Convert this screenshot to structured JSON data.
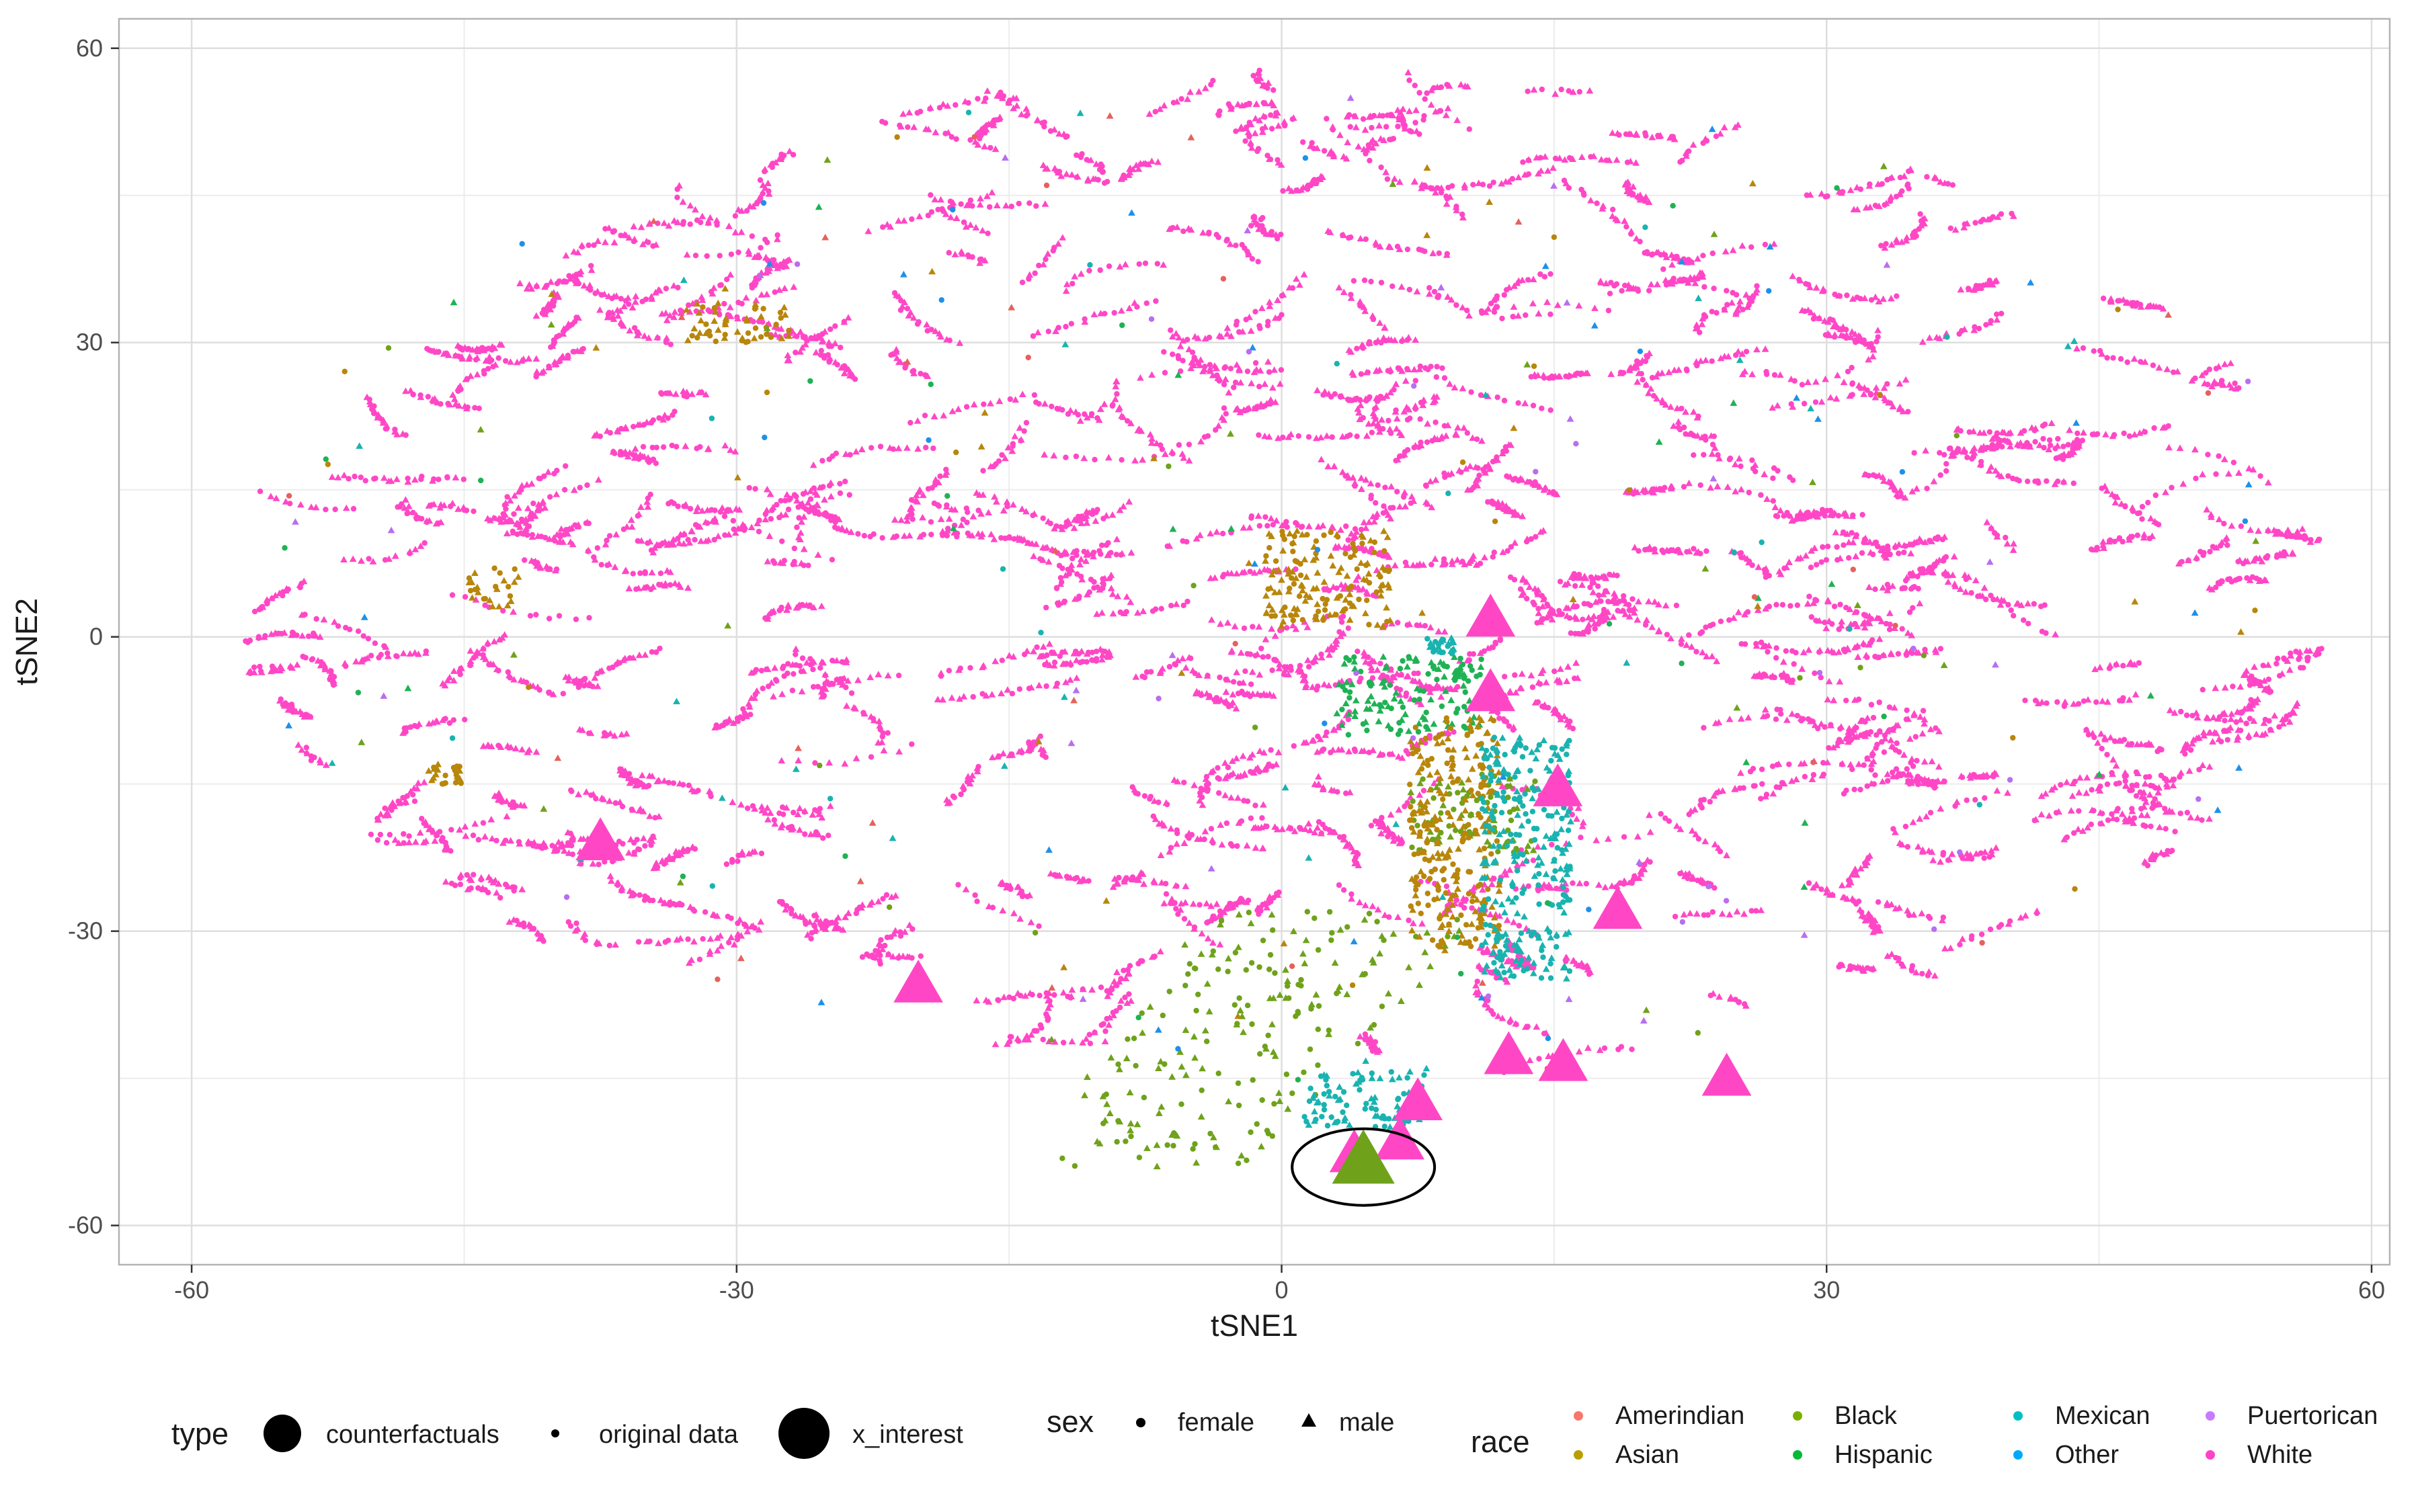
{
  "chart_data": {
    "type": "scatter",
    "title": "",
    "xlabel": "tSNE1",
    "ylabel": "tSNE2",
    "xlim": [
      -64,
      61
    ],
    "ylim": [
      -64,
      63
    ],
    "x_ticks": [
      -60,
      -30,
      0,
      30,
      60
    ],
    "y_ticks": [
      -60,
      -30,
      0,
      30,
      60
    ],
    "x_tick_labels": [
      "-60",
      "-30",
      "0",
      "30",
      "60"
    ],
    "y_tick_labels": [
      "-60",
      "-30",
      "0",
      "30",
      "60"
    ],
    "grid": true,
    "legend_position": "bottom",
    "legends": {
      "type": {
        "title": "type",
        "items": [
          {
            "label": "counterfactuals",
            "size": "large"
          },
          {
            "label": "original data",
            "size": "small"
          },
          {
            "label": "x_interest",
            "size": "largest"
          }
        ]
      },
      "sex": {
        "title": "sex",
        "items": [
          {
            "label": "female",
            "shape": "circle"
          },
          {
            "label": "male",
            "shape": "triangle"
          }
        ]
      },
      "race": {
        "title": "race",
        "items": [
          {
            "label": "Amerindian",
            "color": "#F8766D"
          },
          {
            "label": "Asian",
            "color": "#B79F00"
          },
          {
            "label": "Black",
            "color": "#7CAE00"
          },
          {
            "label": "Hispanic",
            "color": "#00BA38"
          },
          {
            "label": "Mexican",
            "color": "#00BFC4"
          },
          {
            "label": "Other",
            "color": "#00A9FF"
          },
          {
            "label": "Puertorican",
            "color": "#C77CFF"
          },
          {
            "label": "White",
            "color": "#FF42C8"
          }
        ]
      }
    },
    "race_colors": {
      "Amerindian": "#E6615C",
      "Asian": "#B8860B",
      "Black": "#6FA21A",
      "Hispanic": "#1FB254",
      "Mexican": "#19B3B0",
      "Other": "#1E90E8",
      "Puertorican": "#B86EF0",
      "White": "#FF47C6"
    },
    "x_interest": {
      "x": 4.5,
      "y": -53.5,
      "race": "Black",
      "sex": "male",
      "circled": true
    },
    "counterfactuals": [
      {
        "x": 11.5,
        "y": 1.8,
        "race": "White",
        "sex": "male"
      },
      {
        "x": 11.5,
        "y": -5.8,
        "race": "White",
        "sex": "male"
      },
      {
        "x": 15.2,
        "y": -15.5,
        "race": "White",
        "sex": "male"
      },
      {
        "x": -37.5,
        "y": -21.0,
        "race": "White",
        "sex": "male"
      },
      {
        "x": 18.5,
        "y": -28.0,
        "race": "White",
        "sex": "male"
      },
      {
        "x": -20.0,
        "y": -35.5,
        "race": "White",
        "sex": "male"
      },
      {
        "x": 12.5,
        "y": -42.8,
        "race": "White",
        "sex": "male"
      },
      {
        "x": 15.5,
        "y": -43.5,
        "race": "White",
        "sex": "male"
      },
      {
        "x": 24.5,
        "y": -45.0,
        "race": "White",
        "sex": "male"
      },
      {
        "x": 7.5,
        "y": -47.5,
        "race": "White",
        "sex": "male"
      },
      {
        "x": 6.5,
        "y": -51.5,
        "race": "White",
        "sex": "male"
      },
      {
        "x": 4.0,
        "y": -52.8,
        "race": "White",
        "sex": "male"
      }
    ],
    "original_data_clusters": [
      {
        "race": "White",
        "x": [
          -58,
          58
        ],
        "y": [
          -45,
          57
        ],
        "note": "elliptical cloud of curved strands, majority of points"
      },
      {
        "race": "Black",
        "x": [
          -14,
          14
        ],
        "y": [
          -54,
          -28
        ],
        "note": "dense wedge extending from lower-left to center"
      },
      {
        "race": "Black",
        "x": [
          7,
          14
        ],
        "y": [
          -22,
          -14
        ],
        "note": "central band"
      },
      {
        "race": "Hispanic",
        "x": [
          3,
          11
        ],
        "y": [
          -10,
          -2
        ],
        "note": "central band"
      },
      {
        "race": "Asian",
        "x": [
          -1,
          6
        ],
        "y": [
          1,
          11
        ],
        "note": "upper central cluster"
      },
      {
        "race": "Asian",
        "x": [
          7,
          12
        ],
        "y": [
          -32,
          -8
        ],
        "note": "central clusters"
      },
      {
        "race": "Asian",
        "x": [
          -33,
          -27
        ],
        "y": [
          30,
          34
        ],
        "note": "upper left cluster"
      },
      {
        "race": "Asian",
        "x": [
          -45,
          -42
        ],
        "y": [
          3,
          7
        ],
        "note": "left cluster"
      },
      {
        "race": "Asian",
        "x": [
          -47,
          -45
        ],
        "y": [
          -15,
          -13
        ],
        "note": "left cluster"
      },
      {
        "race": "Mexican",
        "x": [
          11,
          16
        ],
        "y": [
          -35,
          -10
        ],
        "note": "right-central band"
      },
      {
        "race": "Mexican",
        "x": [
          1,
          8
        ],
        "y": [
          -50,
          -44
        ],
        "note": "lower band"
      },
      {
        "race": "Mexican",
        "x": [
          8,
          10
        ],
        "y": [
          -2,
          0
        ],
        "note": "central cluster"
      }
    ]
  }
}
